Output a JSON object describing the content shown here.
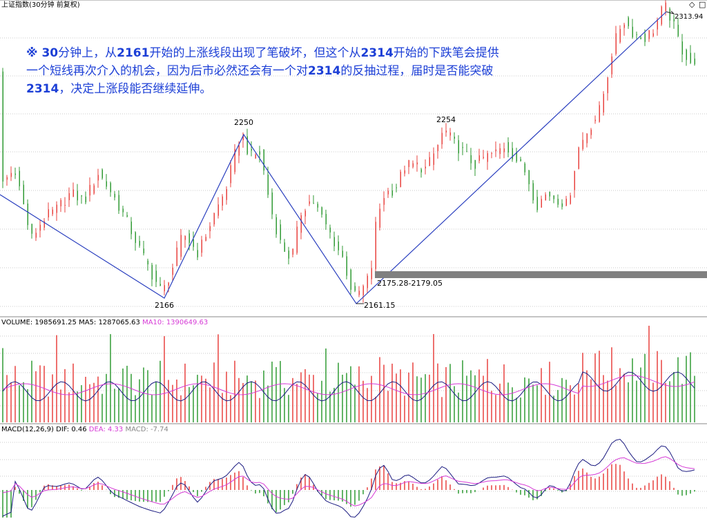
{
  "header": {
    "title": "上证指数(30分钟 前复权)",
    "diamond": "◇",
    "close": "□"
  },
  "annotation": {
    "prefix": "※ ",
    "parts": [
      {
        "t": "30",
        "b": true
      },
      {
        "t": "分钟上，从",
        "b": false
      },
      {
        "t": "2161",
        "b": true
      },
      {
        "t": "开始的上涨线段出现了笔破坏，但这个从",
        "b": false
      },
      {
        "t": "2314",
        "b": true
      },
      {
        "t": "开始的下跌笔会提供一个短线再次介入的机会，因为后市必然还会有一个对",
        "b": false
      },
      {
        "t": "2314",
        "b": true
      },
      {
        "t": "的反抽过程，届时是否能突破",
        "b": false
      },
      {
        "t": "2314",
        "b": true
      },
      {
        "t": "，决定上涨段能否继续延伸。",
        "b": false
      }
    ]
  },
  "labels": {
    "low_2166": "2166",
    "high_2250": "2250",
    "high_2254": "2254",
    "low_2161": "2161.15",
    "high_2313": "2313.94",
    "gap": "2175.28-2179.05"
  },
  "volume_header": {
    "label": "VOLUME: 1985691.25",
    "ma5": "MA5: 1287065.63",
    "ma10": "MA10: 1390649.63"
  },
  "macd_header": {
    "label": "MACD(12,26,9)",
    "dif": "DIF: 0.46",
    "dea": "DEA: 4.33",
    "macd": "MACD: -7.74"
  },
  "colors": {
    "up": "#e8413d",
    "down": "#2f9a33",
    "stroke_line": "#2a3fbf",
    "ma10": "#d63ad6",
    "dea": "#d63ad6",
    "gap_band": "#808080",
    "grid": "#c8c8c8"
  },
  "chart_data": [
    {
      "type": "candlestick",
      "title": "上证指数(30分钟 前复权)",
      "pivots": [
        {
          "label": "2166",
          "value": 2166,
          "kind": "low"
        },
        {
          "label": "2250",
          "value": 2250,
          "kind": "high"
        },
        {
          "label": "2161.15",
          "value": 2161.15,
          "kind": "low"
        },
        {
          "label": "2254",
          "value": 2254,
          "kind": "high"
        },
        {
          "label": "2313.94",
          "value": 2313.94,
          "kind": "high"
        }
      ],
      "stroke_points": [
        2220,
        2166,
        2250,
        2161.15,
        2313.94
      ],
      "gap_zone": [
        2175.28,
        2179.05
      ]
    },
    {
      "type": "bar",
      "title": "VOLUME",
      "last_value": 1985691.25,
      "ma5": 1287065.63,
      "ma10": 1390649.63
    },
    {
      "type": "line",
      "title": "MACD(12,26,9)",
      "dif": 0.46,
      "dea": 4.33,
      "macd": -7.74
    }
  ]
}
